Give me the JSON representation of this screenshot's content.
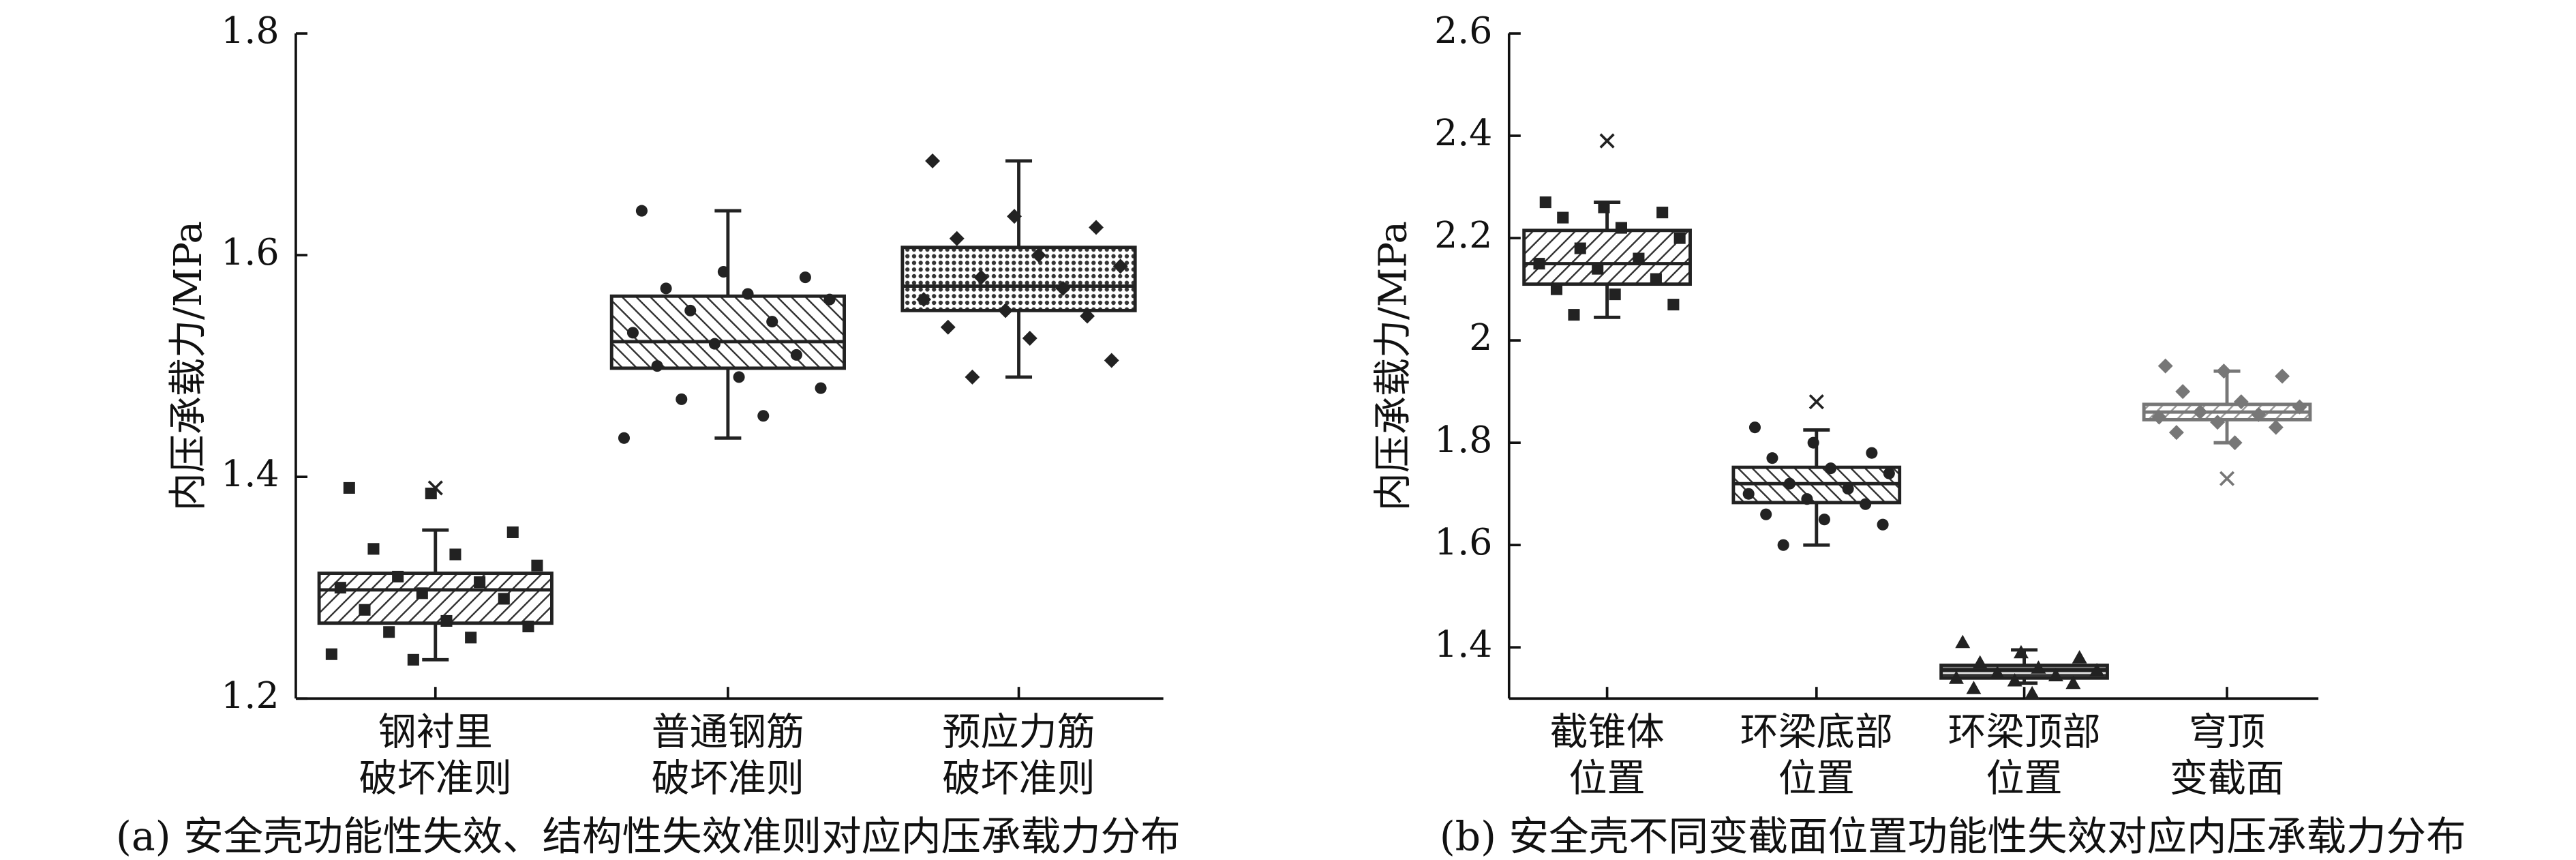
{
  "chart_data": [
    {
      "type": "box",
      "title": "(a) 安全壳功能性失效、结构性失效准则对应内压承载力分布",
      "ylabel": "内压承载力/MPa",
      "ylim": [
        1.2,
        1.8
      ],
      "yticks": [
        1.2,
        1.4,
        1.6,
        1.8
      ],
      "categories": [
        [
          "钢衬里",
          "破坏准则"
        ],
        [
          "普通钢筋",
          "破坏准则"
        ],
        [
          "预应力筋",
          "破坏准则"
        ]
      ],
      "boxes": [
        {
          "whislo": 1.235,
          "q1": 1.268,
          "med": 1.298,
          "q3": 1.313,
          "whishi": 1.352,
          "outliers": [
            1.39
          ],
          "color": "#222222",
          "marker": "square",
          "points": [
            1.39,
            1.385,
            1.35,
            1.335,
            1.33,
            1.32,
            1.31,
            1.305,
            1.3,
            1.295,
            1.29,
            1.28,
            1.27,
            1.265,
            1.26,
            1.255,
            1.24,
            1.235
          ]
        },
        {
          "whislo": 1.435,
          "q1": 1.498,
          "med": 1.522,
          "q3": 1.563,
          "whishi": 1.64,
          "outliers": [],
          "color": "#222222",
          "marker": "circle",
          "points": [
            1.64,
            1.585,
            1.58,
            1.57,
            1.565,
            1.56,
            1.55,
            1.54,
            1.53,
            1.52,
            1.51,
            1.5,
            1.49,
            1.48,
            1.47,
            1.455,
            1.435
          ]
        },
        {
          "whislo": 1.49,
          "q1": 1.55,
          "med": 1.572,
          "q3": 1.607,
          "whishi": 1.685,
          "outliers": [],
          "color": "#222222",
          "marker": "diamond",
          "points": [
            1.685,
            1.635,
            1.625,
            1.615,
            1.6,
            1.59,
            1.58,
            1.57,
            1.56,
            1.55,
            1.545,
            1.535,
            1.525,
            1.505,
            1.49
          ]
        }
      ]
    },
    {
      "type": "box",
      "title": "(b) 安全壳不同变截面位置功能性失效对应内压承载力分布",
      "ylabel": "内压承载力/MPa",
      "ylim": [
        1.3,
        2.6
      ],
      "yticks": [
        1.4,
        1.6,
        1.8,
        2.0,
        2.2,
        2.4,
        2.6
      ],
      "categories": [
        [
          "截锥体",
          "位置"
        ],
        [
          "环梁底部",
          "位置"
        ],
        [
          "环梁顶部",
          "位置"
        ],
        [
          "穹顶",
          "变截面"
        ]
      ],
      "boxes": [
        {
          "whislo": 2.045,
          "q1": 2.11,
          "med": 2.15,
          "q3": 2.215,
          "whishi": 2.27,
          "outliers": [
            2.39
          ],
          "color": "#222222",
          "marker": "square",
          "points": [
            2.27,
            2.26,
            2.25,
            2.24,
            2.22,
            2.2,
            2.18,
            2.16,
            2.15,
            2.14,
            2.12,
            2.1,
            2.09,
            2.07,
            2.05
          ]
        },
        {
          "whislo": 1.6,
          "q1": 1.683,
          "med": 1.72,
          "q3": 1.752,
          "whishi": 1.825,
          "outliers": [
            1.88
          ],
          "color": "#222222",
          "marker": "circle",
          "points": [
            1.83,
            1.8,
            1.78,
            1.77,
            1.75,
            1.74,
            1.72,
            1.71,
            1.7,
            1.69,
            1.68,
            1.66,
            1.65,
            1.64,
            1.6
          ]
        },
        {
          "whislo": 1.33,
          "q1": 1.34,
          "med": 1.355,
          "q3": 1.365,
          "whishi": 1.395,
          "outliers": [],
          "color": "#222222",
          "marker": "triangle",
          "points": [
            1.41,
            1.39,
            1.38,
            1.37,
            1.36,
            1.355,
            1.35,
            1.345,
            1.34,
            1.335,
            1.33,
            1.32,
            1.31
          ]
        },
        {
          "whislo": 1.8,
          "q1": 1.845,
          "med": 1.86,
          "q3": 1.875,
          "whishi": 1.94,
          "outliers": [
            1.73
          ],
          "color": "#777777",
          "marker": "diamond",
          "points": [
            1.95,
            1.94,
            1.93,
            1.9,
            1.88,
            1.87,
            1.86,
            1.855,
            1.85,
            1.84,
            1.83,
            1.82,
            1.8
          ]
        }
      ]
    }
  ]
}
